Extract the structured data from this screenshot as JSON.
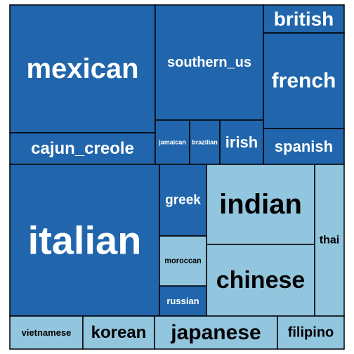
{
  "chart_data": {
    "type": "treemap",
    "colors": {
      "dark": "#2166ac",
      "light": "#92c5de",
      "dark_text": "#ffffff",
      "light_text": "#000000"
    },
    "groups": [
      {
        "color": "dark",
        "items": [
          {
            "label": "mexican",
            "value": 2.2
          },
          {
            "label": "southern_us",
            "value": 1.3
          },
          {
            "label": "british",
            "value": 0.31
          },
          {
            "label": "french",
            "value": 1.03
          },
          {
            "label": "cajun_creole",
            "value": 0.38
          },
          {
            "label": "jamaican",
            "value": 0.1
          },
          {
            "label": "brazilian",
            "value": 0.09
          },
          {
            "label": "irish",
            "value": 0.13
          },
          {
            "label": "spanish",
            "value": 0.4
          },
          {
            "label": "italian",
            "value": 3.25
          },
          {
            "label": "greek",
            "value": 0.39
          },
          {
            "label": "russian",
            "value": 0.17
          }
        ]
      },
      {
        "color": "light",
        "items": [
          {
            "label": "indian",
            "value": 1.1
          },
          {
            "label": "chinese",
            "value": 1.04
          },
          {
            "label": "thai",
            "value": 0.59
          },
          {
            "label": "moroccan",
            "value": 0.3
          },
          {
            "label": "vietnamese",
            "value": 0.17
          },
          {
            "label": "korean",
            "value": 0.13
          },
          {
            "label": "japanese",
            "value": 0.23
          },
          {
            "label": "filipino",
            "value": 0.12
          }
        ]
      }
    ]
  }
}
